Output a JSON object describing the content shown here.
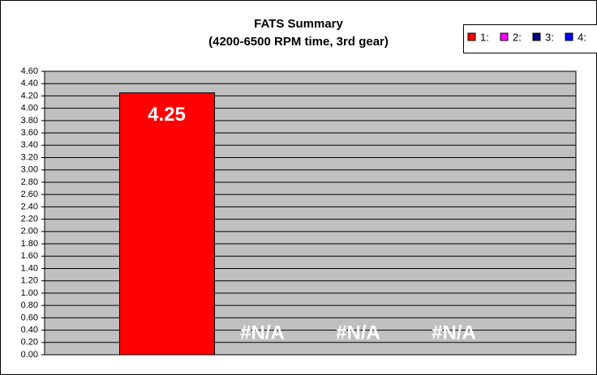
{
  "chart_data": {
    "type": "bar",
    "title": "FATS Summary",
    "subtitle": "(4200-6500 RPM time, 3rd gear)",
    "categories": [
      null
    ],
    "series": [
      {
        "name": "1:",
        "color": "#ff0000",
        "values": [
          4.25
        ],
        "value_labels": [
          "4.25"
        ]
      },
      {
        "name": "2:",
        "color": "#ff00ff",
        "values": [
          null
        ],
        "value_labels": [
          "#N/A"
        ]
      },
      {
        "name": "3:",
        "color": "#000080",
        "values": [
          null
        ],
        "value_labels": [
          "#N/A"
        ]
      },
      {
        "name": "4:",
        "color": "#0000ff",
        "values": [
          null
        ],
        "value_labels": [
          "#N/A"
        ]
      }
    ],
    "ylim": [
      0,
      4.6
    ],
    "yticks": [
      {
        "value": 0,
        "label": "0.00"
      },
      {
        "value": 0.2,
        "label": "0.20"
      },
      {
        "value": 0.4,
        "label": "0.40"
      },
      {
        "value": 0.6,
        "label": "0.60"
      },
      {
        "value": 0.8,
        "label": "0.80"
      },
      {
        "value": 1,
        "label": "1.00"
      },
      {
        "value": 1.2,
        "label": "1.20"
      },
      {
        "value": 1.4,
        "label": "1.40"
      },
      {
        "value": 1.6,
        "label": "1.60"
      },
      {
        "value": 1.8,
        "label": "1.80"
      },
      {
        "value": 2,
        "label": "2.00"
      },
      {
        "value": 2.2,
        "label": "2.20"
      },
      {
        "value": 2.4,
        "label": "2.40"
      },
      {
        "value": 2.6,
        "label": "2.60"
      },
      {
        "value": 2.8,
        "label": "2.80"
      },
      {
        "value": 3,
        "label": "3.00"
      },
      {
        "value": 3.2,
        "label": "3.20"
      },
      {
        "value": 3.4,
        "label": "3.40"
      },
      {
        "value": 3.6,
        "label": "3.60"
      },
      {
        "value": 3.8,
        "label": "3.80"
      },
      {
        "value": 4,
        "label": "4.00"
      },
      {
        "value": 4.2,
        "label": "4.20"
      },
      {
        "value": 4.4,
        "label": "4.40"
      },
      {
        "value": 4.6,
        "label": "4.60"
      }
    ],
    "grid": true,
    "legend": "top-right",
    "plot_background": "#c0c0c0"
  }
}
